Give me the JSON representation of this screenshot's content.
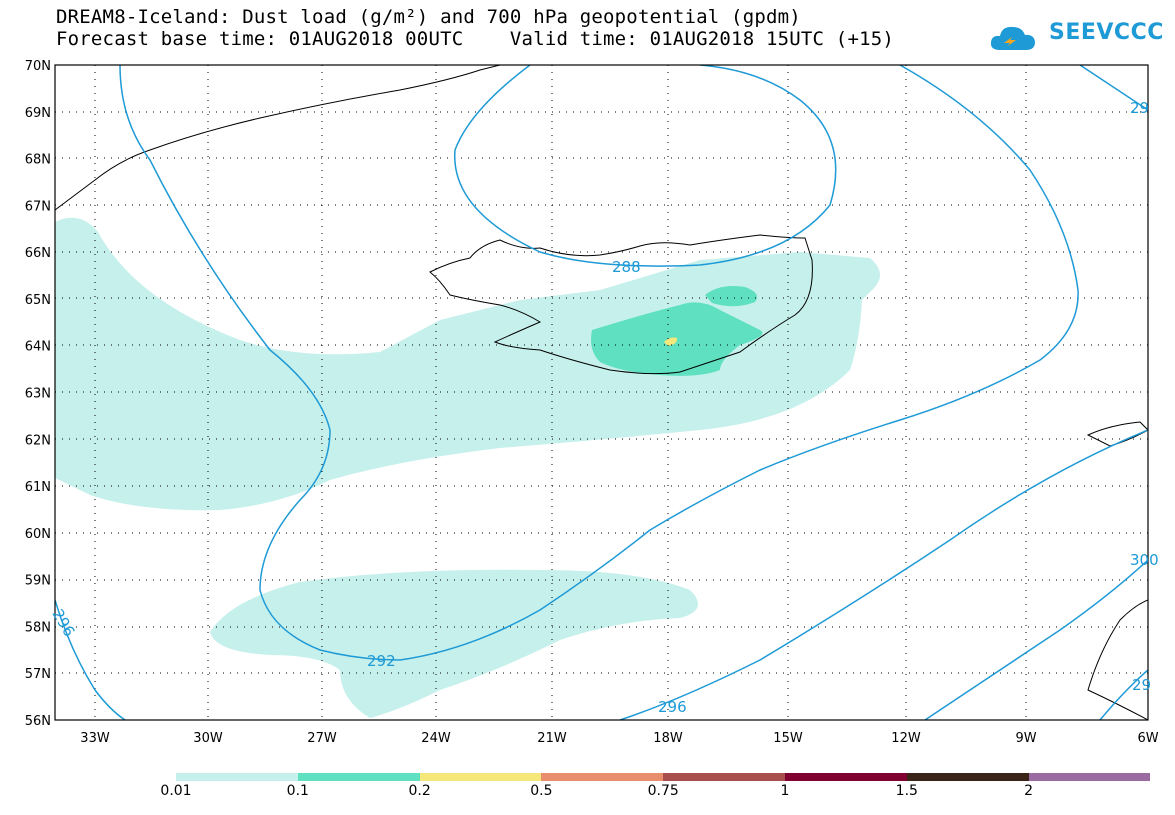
{
  "header": {
    "title_line1": "DREAM8-Iceland: Dust load (g/m²) and 700 hPa geopotential (gpdm)",
    "title_line2": "Forecast base time: 01AUG2018 00UTC    Valid time: 01AUG2018 15UTC (+15)",
    "logo_text": "SEEVCCC"
  },
  "map": {
    "lat_labels": [
      "70N",
      "69N",
      "68N",
      "67N",
      "66N",
      "65N",
      "64N",
      "63N",
      "62N",
      "61N",
      "60N",
      "59N",
      "58N",
      "57N",
      "56N"
    ],
    "lon_labels": [
      "33W",
      "30W",
      "27W",
      "24W",
      "21W",
      "18W",
      "15W",
      "12W",
      "9W",
      "6W"
    ],
    "contour_labels": [
      "288",
      "292",
      "296",
      "296",
      "300",
      "29",
      "29"
    ],
    "contour_color": "#1e9ad6",
    "dust_colors": {
      "level_001": "#c6f0ec",
      "level_01": "#5fe0c0",
      "level_02": "#f5e77a"
    }
  },
  "legend": {
    "labels": [
      "0.01",
      "0.1",
      "0.2",
      "0.5",
      "0.75",
      "1",
      "1.5",
      "2"
    ],
    "colors": [
      "#c6f0ec",
      "#5fe0c0",
      "#f5e77a",
      "#e88e6c",
      "#a84e4c",
      "#800030",
      "#3a2418",
      "#9a6aa0"
    ]
  }
}
